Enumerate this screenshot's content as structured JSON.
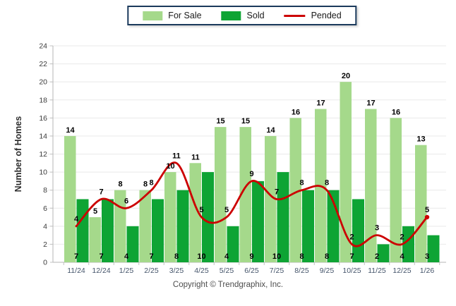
{
  "legend": {
    "for_sale": "For Sale",
    "sold": "Sold",
    "pended": "Pended"
  },
  "footer": {
    "copyright": "Copyright © Trendgraphix, Inc."
  },
  "colors": {
    "for_sale": "#a5d98b",
    "sold": "#0ea434",
    "pended": "#cc0000",
    "legend_border": "#1b3a5c",
    "grid": "#e9e9e9",
    "axis": "#b5b5b5",
    "tick": "#c0c0c0",
    "x_tick_label": "#44546a",
    "y_tick_label": "#3b3b3b",
    "data_label": "#000000",
    "y_title": "#2e2e2e"
  },
  "chart_data": {
    "type": "bar",
    "title": "",
    "categories": [
      "11/24",
      "12/24",
      "1/25",
      "2/25",
      "3/25",
      "4/25",
      "5/25",
      "6/25",
      "7/25",
      "8/25",
      "9/25",
      "10/25",
      "11/25",
      "12/25",
      "1/26"
    ],
    "series": [
      {
        "name": "For Sale",
        "type": "bar",
        "color": "#a5d98b",
        "values": [
          14,
          5,
          8,
          8,
          10,
          11,
          15,
          15,
          14,
          16,
          17,
          20,
          17,
          16,
          13
        ]
      },
      {
        "name": "Sold",
        "type": "bar",
        "color": "#0ea434",
        "values": [
          7,
          7,
          4,
          7,
          8,
          10,
          4,
          9,
          10,
          8,
          8,
          7,
          2,
          4,
          3
        ]
      },
      {
        "name": "Pended",
        "type": "line",
        "color": "#cc0000",
        "values": [
          4,
          7,
          6,
          8,
          11,
          5,
          5,
          9,
          7,
          8,
          8,
          2,
          3,
          2,
          5
        ]
      }
    ],
    "xlabel": "",
    "ylabel": "Number of Homes",
    "ylim": [
      0,
      24
    ],
    "ytick_step": 2,
    "grid": true,
    "legend_position": "top-center",
    "line_end_marker": true
  }
}
